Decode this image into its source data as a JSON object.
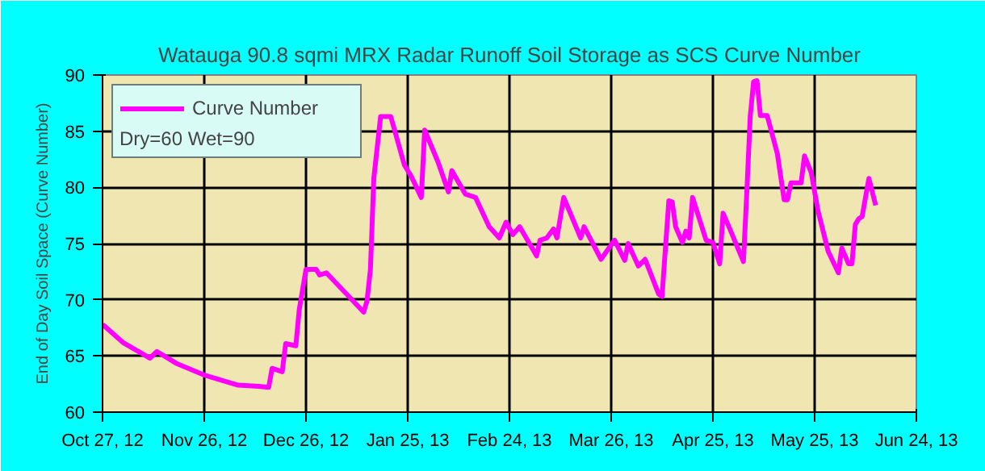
{
  "chart_data": {
    "type": "line",
    "title": "Watauga 90.8 sqmi MRX Radar Runoff Soil Storage as SCS Curve Number",
    "ylabel": "End of Day Soil Space (Curve Number)",
    "x": [
      "2012-10-27",
      "2012-11-02",
      "2012-11-10",
      "2012-11-12",
      "2012-11-18",
      "2012-11-26",
      "2012-12-06",
      "2012-12-12",
      "2012-12-15",
      "2012-12-16",
      "2012-12-19",
      "2012-12-20",
      "2012-12-23",
      "2012-12-24",
      "2012-12-26",
      "2012-12-29",
      "2012-12-30",
      "2013-01-01",
      "2013-01-07",
      "2013-01-12",
      "2013-01-13",
      "2013-01-14",
      "2013-01-15",
      "2013-01-17",
      "2013-01-20",
      "2013-01-24",
      "2013-01-26",
      "2013-01-29",
      "2013-01-30",
      "2013-02-03",
      "2013-02-06",
      "2013-02-07",
      "2013-02-11",
      "2013-02-14",
      "2013-02-18",
      "2013-02-21",
      "2013-02-23",
      "2013-02-25",
      "2013-02-27",
      "2013-03-04",
      "2013-03-05",
      "2013-03-07",
      "2013-03-09",
      "2013-03-10",
      "2013-03-12",
      "2013-03-17",
      "2013-03-18",
      "2013-03-23",
      "2013-03-27",
      "2013-03-30",
      "2013-03-31",
      "2013-04-03",
      "2013-04-05",
      "2013-04-09",
      "2013-04-10",
      "2013-04-11",
      "2013-04-12",
      "2013-04-13",
      "2013-04-14",
      "2013-04-16",
      "2013-04-17",
      "2013-04-18",
      "2013-04-19",
      "2013-04-23",
      "2013-04-25",
      "2013-04-27",
      "2013-04-28",
      "2013-04-30",
      "2013-05-04",
      "2013-05-05",
      "2013-05-06",
      "2013-05-07",
      "2013-05-08",
      "2013-05-09",
      "2013-05-11",
      "2013-05-14",
      "2013-05-16",
      "2013-05-17",
      "2013-05-18",
      "2013-05-21",
      "2013-05-22",
      "2013-05-24",
      "2013-05-26",
      "2013-05-29",
      "2013-06-01",
      "2013-06-02",
      "2013-06-04",
      "2013-06-05",
      "2013-06-06",
      "2013-06-07",
      "2013-06-08",
      "2013-06-10",
      "2013-06-12"
    ],
    "series": [
      {
        "name": "Curve Number",
        "color": "#ff00ff",
        "values": [
          67.8,
          66.2,
          64.8,
          65.4,
          64.3,
          63.3,
          62.4,
          62.3,
          62.2,
          63.9,
          63.6,
          66.1,
          65.9,
          69.1,
          72.7,
          72.7,
          72.2,
          72.4,
          70.5,
          68.9,
          69.9,
          72.7,
          80.8,
          86.3,
          86.3,
          82.0,
          81.0,
          79.1,
          85.1,
          82.2,
          79.6,
          81.5,
          79.4,
          79.1,
          76.5,
          75.5,
          76.9,
          75.8,
          76.5,
          73.9,
          75.3,
          75.5,
          76.3,
          75.5,
          79.1,
          75.5,
          76.5,
          73.6,
          75.3,
          73.5,
          75.0,
          73.0,
          73.6,
          70.5,
          70.3,
          74.6,
          78.8,
          78.7,
          76.5,
          75.1,
          76.1,
          75.5,
          79.1,
          75.3,
          75.1,
          73.2,
          77.7,
          76.3,
          73.4,
          79.6,
          86.3,
          89.4,
          89.5,
          86.4,
          86.4,
          83.0,
          78.9,
          78.9,
          80.4,
          80.4,
          82.8,
          81.3,
          77.9,
          74.3,
          72.4,
          74.6,
          73.2,
          73.2,
          76.7,
          77.2,
          77.4,
          80.8,
          78.4
        ]
      }
    ],
    "annotations": [
      "Dry=60 Wet=90"
    ],
    "xlim": [
      "2012-10-27",
      "2013-06-24"
    ],
    "xticks": [
      {
        "value": "2012-10-27",
        "label": "Oct 27, 12"
      },
      {
        "value": "2012-11-26",
        "label": "Nov 26, 12"
      },
      {
        "value": "2012-12-26",
        "label": "Dec 26, 12"
      },
      {
        "value": "2013-01-25",
        "label": "Jan 25, 13"
      },
      {
        "value": "2013-02-24",
        "label": "Feb 24, 13"
      },
      {
        "value": "2013-03-26",
        "label": "Mar 26, 13"
      },
      {
        "value": "2013-04-25",
        "label": "Apr 25, 13"
      },
      {
        "value": "2013-05-25",
        "label": "May 25, 13"
      },
      {
        "value": "2013-06-24",
        "label": "Jun 24, 13"
      }
    ],
    "ylim": [
      60,
      90
    ],
    "yticks": [
      60,
      65,
      70,
      75,
      80,
      85,
      90
    ],
    "grid": true,
    "legend": "top left",
    "line_style": "solid",
    "marker": "none"
  }
}
